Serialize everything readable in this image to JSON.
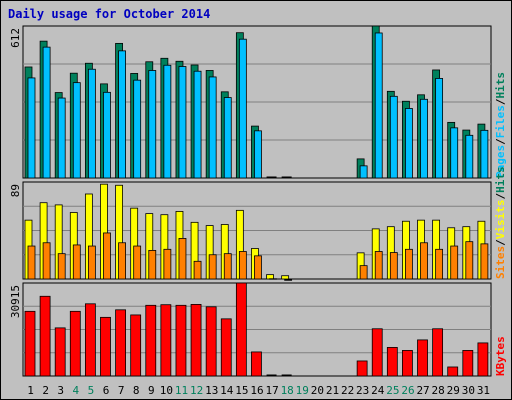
{
  "title": "Daily usage for October 2014",
  "colors": {
    "background": "#c0c0c0",
    "hits": "#00805c",
    "files": "#00c0ff",
    "pages": "#00c0ff",
    "visits": "#ffff00",
    "sites": "#ff8000",
    "kbytes": "#ff0000",
    "title": "#0000c0",
    "weekend_day": "#00805c"
  },
  "chart_data": [
    {
      "type": "bar",
      "panel": "requests",
      "ymax_label": "612",
      "ylim": [
        0,
        612
      ],
      "legend": [
        "Pages",
        "Files",
        "Hits"
      ],
      "categories": [
        "1",
        "2",
        "3",
        "4",
        "5",
        "6",
        "7",
        "8",
        "9",
        "10",
        "11",
        "12",
        "13",
        "14",
        "15",
        "16",
        "17",
        "18",
        "19",
        "20",
        "21",
        "22",
        "23",
        "24",
        "25",
        "26",
        "27",
        "28",
        "29",
        "30",
        "31"
      ],
      "weekend_days": [
        "4",
        "5",
        "11",
        "12",
        "18",
        "19",
        "25",
        "26"
      ],
      "series": [
        {
          "name": "Hits",
          "values": [
            447,
            551,
            344,
            422,
            462,
            379,
            542,
            421,
            468,
            482,
            470,
            455,
            433,
            347,
            585,
            209,
            0,
            0,
            0,
            0,
            0,
            0,
            77,
            612,
            349,
            309,
            335,
            435,
            224,
            193,
            217
          ]
        },
        {
          "name": "Files",
          "values": [
            415,
            539,
            334,
            396,
            450,
            357,
            524,
            406,
            445,
            466,
            461,
            442,
            419,
            336,
            571,
            202,
            0,
            0,
            0,
            0,
            0,
            0,
            61,
            596,
            341,
            292,
            329,
            413,
            214,
            184,
            204
          ]
        },
        {
          "name": "Pages",
          "values": [
            30,
            27,
            26,
            28,
            26,
            28,
            30,
            26,
            28,
            30,
            26,
            28,
            30,
            29,
            29,
            15,
            6,
            6,
            0,
            0,
            0,
            0,
            5,
            37,
            28,
            27,
            26,
            28,
            27,
            22,
            24
          ]
        }
      ]
    },
    {
      "type": "bar",
      "panel": "visitors",
      "ymax_label": "89",
      "ylim": [
        0,
        89
      ],
      "legend": [
        "Sites",
        "Visits",
        "Hits"
      ],
      "series": [
        {
          "name": "Visits",
          "values": [
            54,
            70,
            68,
            61,
            78,
            87,
            86,
            65,
            60,
            59,
            62,
            52,
            49,
            50,
            63,
            28,
            4,
            3,
            0,
            0,
            0,
            0,
            24,
            46,
            48,
            53,
            54,
            54,
            47,
            48,
            53
          ]
        },
        {
          "name": "Sites",
          "values": [
            33,
            36,
            26,
            34,
            33,
            45,
            36,
            33,
            29,
            30,
            40,
            19,
            25,
            26,
            28,
            24,
            3,
            2,
            0,
            0,
            0,
            0,
            15,
            28,
            27,
            30,
            36,
            30,
            33,
            37,
            35
          ]
        }
      ]
    },
    {
      "type": "bar",
      "panel": "kbytes",
      "ymax_label": "30915",
      "ylim": [
        0,
        30915
      ],
      "legend": [
        "KBytes"
      ],
      "series": [
        {
          "name": "KBytes",
          "values": [
            21500,
            26500,
            16000,
            21500,
            24000,
            19500,
            22000,
            20300,
            23500,
            23700,
            23500,
            23800,
            23000,
            19000,
            30915,
            8000,
            400,
            400,
            0,
            0,
            0,
            0,
            5000,
            15700,
            9500,
            8500,
            12000,
            15700,
            3000,
            8500,
            11000
          ]
        }
      ]
    }
  ]
}
